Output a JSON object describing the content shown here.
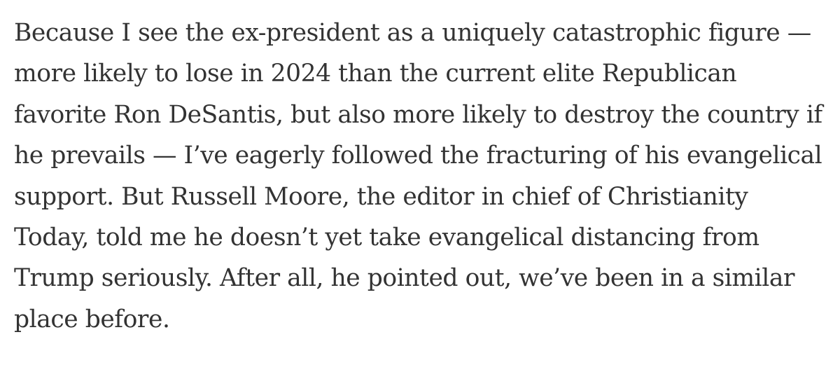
{
  "article": {
    "paragraph_lines": [
      "Because I see the ex-president as a uniquely catastrophic figure —",
      "more likely to lose in 2024 than the current elite Republican",
      "favorite Ron DeSantis, but also more likely to destroy the country if",
      "he prevails — I’ve eagerly followed the fracturing of his evangelical",
      "support. But Russell Moore, the editor in chief of Christianity",
      "Today, told me he doesn’t yet take evangelical distancing from",
      "Trump seriously. After all, he pointed out, we’ve been in a similar",
      "place before."
    ]
  },
  "colors": {
    "text": "#333333",
    "background": "#ffffff"
  }
}
